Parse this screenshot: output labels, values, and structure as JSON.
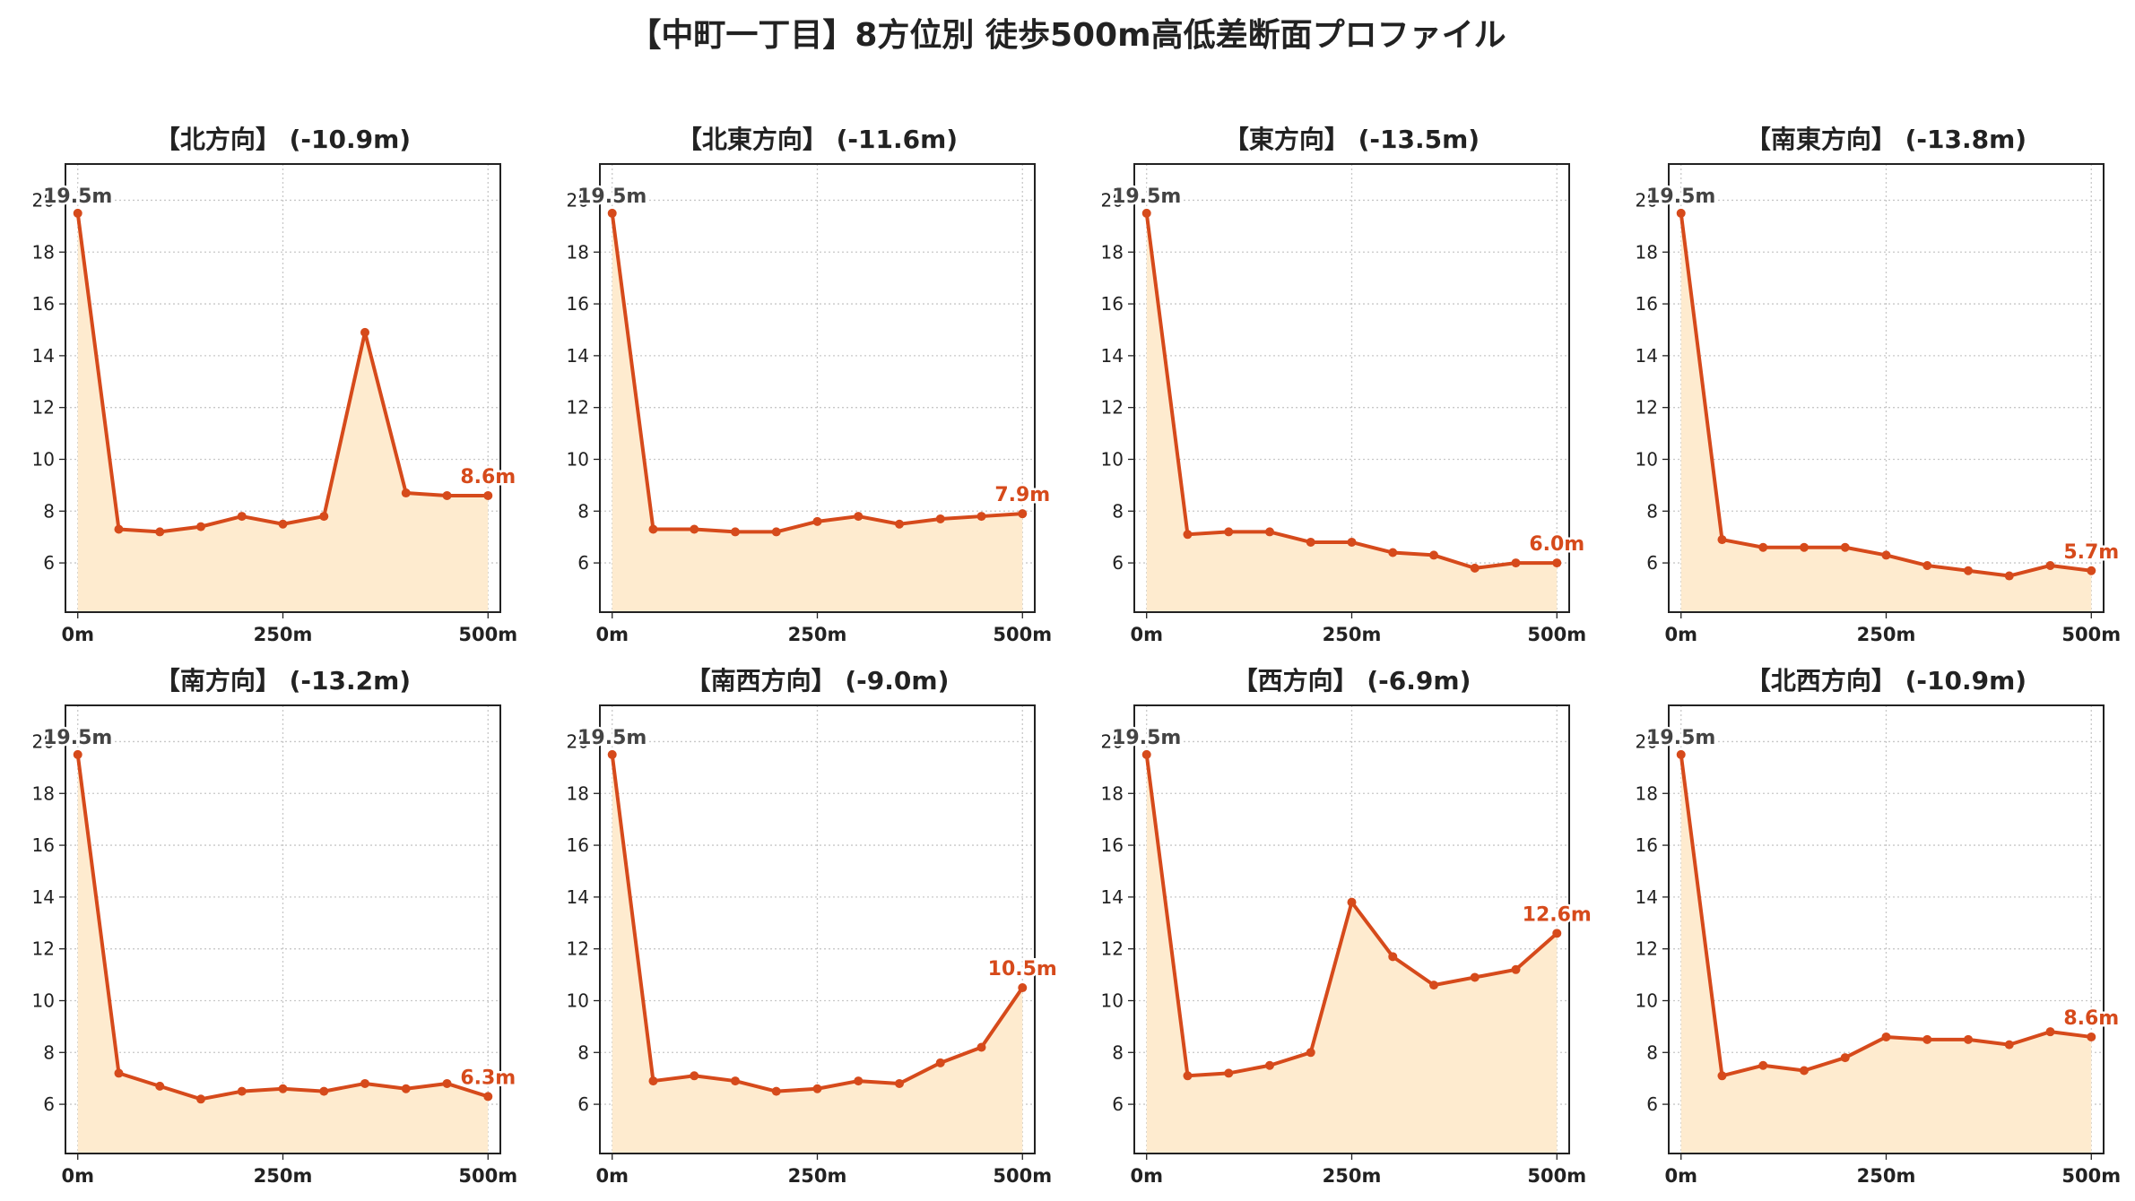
{
  "title": "【中町一丁目】8方位別 徒歩500m高低差断面プロファイル",
  "colors": {
    "line": "#d64a1b",
    "fill": "#feebcf",
    "start_label": "#444444",
    "end_label": "#d64a1b",
    "grid": "#c8c8c8"
  },
  "chart_data": [
    {
      "type": "area",
      "title": "【北方向】 (-10.9m)",
      "x": [
        0,
        50,
        100,
        150,
        200,
        250,
        300,
        350,
        400,
        450,
        500
      ],
      "y": [
        19.5,
        7.3,
        7.2,
        7.4,
        7.8,
        7.5,
        7.8,
        14.9,
        8.7,
        8.6,
        8.6
      ],
      "start_label": "19.5m",
      "end_label": "8.6m",
      "xticks": [
        0,
        250,
        500
      ],
      "xtick_labels": [
        "0m",
        "250m",
        "500m"
      ],
      "yticks": [
        6,
        8,
        10,
        12,
        14,
        16,
        18,
        20
      ],
      "ytick_labels": [
        "6",
        "8",
        "10",
        "12",
        "14",
        "16",
        "18",
        "20"
      ],
      "xlim": [
        -15,
        515
      ],
      "ylim": [
        4.1,
        21.4
      ],
      "grid": true
    },
    {
      "type": "area",
      "title": "【北東方向】 (-11.6m)",
      "x": [
        0,
        50,
        100,
        150,
        200,
        250,
        300,
        350,
        400,
        450,
        500
      ],
      "y": [
        19.5,
        7.3,
        7.3,
        7.2,
        7.2,
        7.6,
        7.8,
        7.5,
        7.7,
        7.8,
        7.9
      ],
      "start_label": "19.5m",
      "end_label": "7.9m",
      "xticks": [
        0,
        250,
        500
      ],
      "xtick_labels": [
        "0m",
        "250m",
        "500m"
      ],
      "yticks": [
        6,
        8,
        10,
        12,
        14,
        16,
        18,
        20
      ],
      "ytick_labels": [
        "6",
        "8",
        "10",
        "12",
        "14",
        "16",
        "18",
        "20"
      ],
      "xlim": [
        -15,
        515
      ],
      "ylim": [
        4.1,
        21.4
      ],
      "grid": true
    },
    {
      "type": "area",
      "title": "【東方向】 (-13.5m)",
      "x": [
        0,
        50,
        100,
        150,
        200,
        250,
        300,
        350,
        400,
        450,
        500
      ],
      "y": [
        19.5,
        7.1,
        7.2,
        7.2,
        6.8,
        6.8,
        6.4,
        6.3,
        5.8,
        6.0,
        6.0
      ],
      "start_label": "19.5m",
      "end_label": "6.0m",
      "xticks": [
        0,
        250,
        500
      ],
      "xtick_labels": [
        "0m",
        "250m",
        "500m"
      ],
      "yticks": [
        6,
        8,
        10,
        12,
        14,
        16,
        18,
        20
      ],
      "ytick_labels": [
        "6",
        "8",
        "10",
        "12",
        "14",
        "16",
        "18",
        "20"
      ],
      "xlim": [
        -15,
        515
      ],
      "ylim": [
        4.1,
        21.4
      ],
      "grid": true
    },
    {
      "type": "area",
      "title": "【南東方向】 (-13.8m)",
      "x": [
        0,
        50,
        100,
        150,
        200,
        250,
        300,
        350,
        400,
        450,
        500
      ],
      "y": [
        19.5,
        6.9,
        6.6,
        6.6,
        6.6,
        6.3,
        5.9,
        5.7,
        5.5,
        5.9,
        5.7
      ],
      "start_label": "19.5m",
      "end_label": "5.7m",
      "xticks": [
        0,
        250,
        500
      ],
      "xtick_labels": [
        "0m",
        "250m",
        "500m"
      ],
      "yticks": [
        6,
        8,
        10,
        12,
        14,
        16,
        18,
        20
      ],
      "ytick_labels": [
        "6",
        "8",
        "10",
        "12",
        "14",
        "16",
        "18",
        "20"
      ],
      "xlim": [
        -15,
        515
      ],
      "ylim": [
        4.1,
        21.4
      ],
      "grid": true
    },
    {
      "type": "area",
      "title": "【南方向】 (-13.2m)",
      "x": [
        0,
        50,
        100,
        150,
        200,
        250,
        300,
        350,
        400,
        450,
        500
      ],
      "y": [
        19.5,
        7.2,
        6.7,
        6.2,
        6.5,
        6.6,
        6.5,
        6.8,
        6.6,
        6.8,
        6.3
      ],
      "start_label": "19.5m",
      "end_label": "6.3m",
      "xticks": [
        0,
        250,
        500
      ],
      "xtick_labels": [
        "0m",
        "250m",
        "500m"
      ],
      "yticks": [
        6,
        8,
        10,
        12,
        14,
        16,
        18,
        20
      ],
      "ytick_labels": [
        "6",
        "8",
        "10",
        "12",
        "14",
        "16",
        "18",
        "20"
      ],
      "xlim": [
        -15,
        515
      ],
      "ylim": [
        4.1,
        21.4
      ],
      "grid": true
    },
    {
      "type": "area",
      "title": "【南西方向】 (-9.0m)",
      "x": [
        0,
        50,
        100,
        150,
        200,
        250,
        300,
        350,
        400,
        450,
        500
      ],
      "y": [
        19.5,
        6.9,
        7.1,
        6.9,
        6.5,
        6.6,
        6.9,
        6.8,
        7.6,
        8.2,
        10.5
      ],
      "start_label": "19.5m",
      "end_label": "10.5m",
      "xticks": [
        0,
        250,
        500
      ],
      "xtick_labels": [
        "0m",
        "250m",
        "500m"
      ],
      "yticks": [
        6,
        8,
        10,
        12,
        14,
        16,
        18,
        20
      ],
      "ytick_labels": [
        "6",
        "8",
        "10",
        "12",
        "14",
        "16",
        "18",
        "20"
      ],
      "xlim": [
        -15,
        515
      ],
      "ylim": [
        4.1,
        21.4
      ],
      "grid": true
    },
    {
      "type": "area",
      "title": "【西方向】 (-6.9m)",
      "x": [
        0,
        50,
        100,
        150,
        200,
        250,
        300,
        350,
        400,
        450,
        500
      ],
      "y": [
        19.5,
        7.1,
        7.2,
        7.5,
        8.0,
        13.8,
        11.7,
        10.6,
        10.9,
        11.2,
        12.6
      ],
      "start_label": "19.5m",
      "end_label": "12.6m",
      "xticks": [
        0,
        250,
        500
      ],
      "xtick_labels": [
        "0m",
        "250m",
        "500m"
      ],
      "yticks": [
        6,
        8,
        10,
        12,
        14,
        16,
        18,
        20
      ],
      "ytick_labels": [
        "6",
        "8",
        "10",
        "12",
        "14",
        "16",
        "18",
        "20"
      ],
      "xlim": [
        -15,
        515
      ],
      "ylim": [
        4.1,
        21.4
      ],
      "grid": true
    },
    {
      "type": "area",
      "title": "【北西方向】 (-10.9m)",
      "x": [
        0,
        50,
        100,
        150,
        200,
        250,
        300,
        350,
        400,
        450,
        500
      ],
      "y": [
        19.5,
        7.1,
        7.5,
        7.3,
        7.8,
        8.6,
        8.5,
        8.5,
        8.3,
        8.8,
        8.6
      ],
      "start_label": "19.5m",
      "end_label": "8.6m",
      "xticks": [
        0,
        250,
        500
      ],
      "xtick_labels": [
        "0m",
        "250m",
        "500m"
      ],
      "yticks": [
        6,
        8,
        10,
        12,
        14,
        16,
        18,
        20
      ],
      "ytick_labels": [
        "6",
        "8",
        "10",
        "12",
        "14",
        "16",
        "18",
        "20"
      ],
      "xlim": [
        -15,
        515
      ],
      "ylim": [
        4.1,
        21.4
      ],
      "grid": true
    }
  ]
}
